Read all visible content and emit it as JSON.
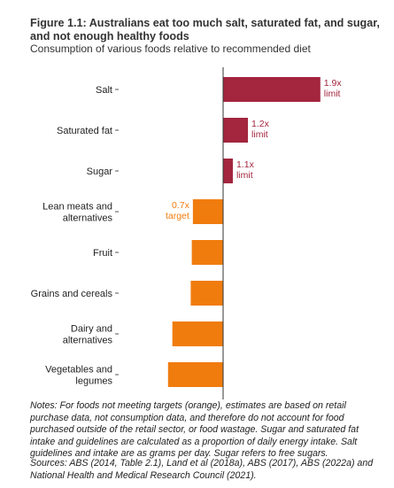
{
  "figure": {
    "title": "Figure 1.1: Australians eat too much salt, saturated fat, and sugar, and not enough healthy foods",
    "subtitle": "Consumption of various foods relative to recommended diet",
    "notes": "Notes: For foods not meeting targets (orange), estimates are based on retail purchase data, not consumption data, and therefore do not account for food purchased outside of the retail sector, or food wastage. Sugar and saturated fat intake and guidelines are calculated as a proportion of daily energy intake. Salt guidelines and intake are as grams per day. Sugar refers to free sugars.",
    "sources": "Sources: ABS (2014, Table 2.1), Land et al (2018a), ABS (2017), ABS (2022a) and National Health and Medical Research Council (2021)."
  },
  "chart_data": {
    "type": "bar",
    "orientation": "horizontal",
    "x_ticks": [
      "0%",
      "50%",
      "100%",
      "150%",
      "200%"
    ],
    "xlim": [
      0,
      200
    ],
    "baseline": 100,
    "grid": false,
    "colors": {
      "over_limit": "#a3253e",
      "below_target": "#f07c0e"
    },
    "categories": [
      {
        "label": [
          "Salt"
        ],
        "value": 190,
        "group": "over_limit",
        "annotation": [
          "1.9x",
          "limit"
        ]
      },
      {
        "label": [
          "Saturated fat"
        ],
        "value": 123,
        "group": "over_limit",
        "annotation": [
          "1.2x",
          "limit"
        ]
      },
      {
        "label": [
          "Sugar"
        ],
        "value": 109,
        "group": "over_limit",
        "annotation": [
          "1.1x",
          "limit"
        ]
      },
      {
        "label": [
          "Lean meats and",
          "alternatives"
        ],
        "value": 72,
        "group": "below_target",
        "annotation": [
          "0.7x",
          "target"
        ]
      },
      {
        "label": [
          "Fruit"
        ],
        "value": 71,
        "group": "below_target",
        "annotation": []
      },
      {
        "label": [
          "Grains and cereals"
        ],
        "value": 70,
        "group": "below_target",
        "annotation": []
      },
      {
        "label": [
          "Dairy and",
          "alternatives"
        ],
        "value": 53,
        "group": "below_target",
        "annotation": []
      },
      {
        "label": [
          "Vegetables and",
          "legumes"
        ],
        "value": 49,
        "group": "below_target",
        "annotation": []
      }
    ]
  }
}
